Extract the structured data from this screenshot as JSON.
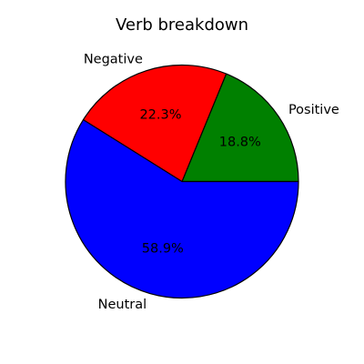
{
  "chart_data": {
    "type": "pie",
    "title": "Verb breakdown",
    "slices": [
      {
        "label": "Positive",
        "value": 18.8,
        "pct_label": "18.8%",
        "color": "#008000"
      },
      {
        "label": "Negative",
        "value": 22.3,
        "pct_label": "22.3%",
        "color": "#ff0000"
      },
      {
        "label": "Neutral",
        "value": 58.9,
        "pct_label": "58.9%",
        "color": "#0000ff"
      }
    ],
    "start_angle_deg": 0,
    "direction": "counterclockwise",
    "legend": "none"
  }
}
